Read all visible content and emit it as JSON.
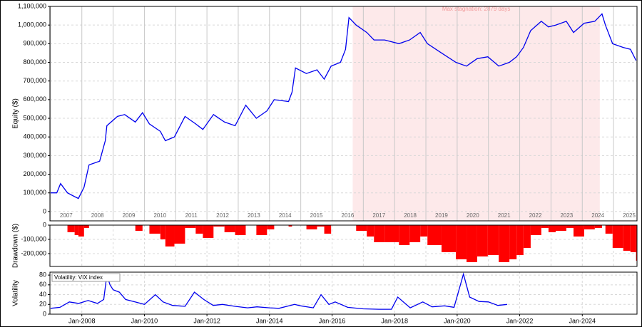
{
  "chart_data": [
    {
      "type": "line",
      "ylabel": "Equity ($)",
      "grid": true,
      "xlim": [
        2006.98,
        2025.75
      ],
      "ylim": [
        -50000,
        1100000
      ],
      "xticks": [
        2007,
        2008,
        2009,
        2010,
        2011,
        2012,
        2013,
        2014,
        2015,
        2016,
        2017,
        2018,
        2019,
        2020,
        2021,
        2022,
        2023,
        2024,
        2025
      ],
      "yticks": [
        {
          "value": 0,
          "label": "0"
        },
        {
          "value": 100000,
          "label": "100,000"
        },
        {
          "value": 200000,
          "label": "200,000"
        },
        {
          "value": 300000,
          "label": "300,000"
        },
        {
          "value": 400000,
          "label": "400,000"
        },
        {
          "value": 500000,
          "label": "500,000"
        },
        {
          "value": 600000,
          "label": "600,000"
        },
        {
          "value": 700000,
          "label": "700,000"
        },
        {
          "value": 800000,
          "label": "800,000"
        },
        {
          "value": 900000,
          "label": "900,000"
        },
        {
          "value": 1000000,
          "label": "1,000,000"
        },
        {
          "value": 1100000,
          "label": "1,100,000"
        }
      ],
      "shaded_regions": [
        {
          "label": "Max stagnation: 2879 days",
          "x": [
            2016.66,
            2024.56
          ],
          "color": "#fde9ea"
        }
      ],
      "x": [
        2007.0,
        2007.2,
        2007.32,
        2007.54,
        2007.77,
        2007.89,
        2008.07,
        2008.23,
        2008.57,
        2008.75,
        2008.8,
        2009.14,
        2009.37,
        2009.71,
        2009.94,
        2010.16,
        2010.51,
        2010.67,
        2010.96,
        2011.3,
        2011.64,
        2011.87,
        2012.21,
        2012.56,
        2012.9,
        2013.24,
        2013.58,
        2013.92,
        2014.15,
        2014.61,
        2014.72,
        2014.83,
        2015.18,
        2015.52,
        2015.75,
        2015.97,
        2016.27,
        2016.43,
        2016.54,
        2016.77,
        2017.11,
        2017.34,
        2017.68,
        2018.14,
        2018.48,
        2018.82,
        2019.05,
        2019.5,
        2019.96,
        2020.3,
        2020.64,
        2020.98,
        2021.33,
        2021.67,
        2021.9,
        2022.12,
        2022.35,
        2022.69,
        2022.92,
        2023.15,
        2023.49,
        2023.72,
        2024.06,
        2024.4,
        2024.63,
        2024.74,
        2024.97,
        2025.31,
        2025.54,
        2025.72
      ],
      "series": [
        {
          "color": "#0000ee",
          "values": [
            100000,
            100000,
            150000,
            100000,
            80000,
            70000,
            130000,
            250000,
            270000,
            380000,
            460000,
            510000,
            520000,
            480000,
            530000,
            470000,
            430000,
            380000,
            400000,
            510000,
            470000,
            440000,
            520000,
            480000,
            460000,
            570000,
            500000,
            540000,
            600000,
            590000,
            640000,
            770000,
            740000,
            760000,
            710000,
            780000,
            800000,
            870000,
            1040000,
            1000000,
            960000,
            920000,
            920000,
            900000,
            920000,
            960000,
            900000,
            850000,
            800000,
            780000,
            820000,
            830000,
            780000,
            800000,
            830000,
            880000,
            970000,
            1020000,
            990000,
            1000000,
            1020000,
            960000,
            1010000,
            1020000,
            1060000,
            1000000,
            900000,
            880000,
            870000,
            810000
          ]
        }
      ]
    },
    {
      "type": "bar",
      "ylabel": "Drawdown ($)",
      "grid": true,
      "xlim": [
        2006.98,
        2025.75
      ],
      "ylim": [
        -290000,
        0
      ],
      "xticks": [
        2008,
        2009,
        2010,
        2011,
        2012,
        2013,
        2014,
        2015,
        2016,
        2017,
        2018,
        2019,
        2020,
        2021,
        2022,
        2023,
        2024,
        2025
      ],
      "yticks": [
        {
          "value": 0,
          "label": "0"
        },
        {
          "value": -100000,
          "label": "-100,000"
        },
        {
          "value": -200000,
          "label": "-200,000"
        }
      ],
      "x": [
        2007.0,
        2007.2,
        2007.32,
        2007.54,
        2007.77,
        2007.89,
        2008.07,
        2008.23,
        2008.57,
        2008.75,
        2008.8,
        2009.14,
        2009.37,
        2009.71,
        2009.94,
        2010.16,
        2010.51,
        2010.67,
        2010.96,
        2011.3,
        2011.64,
        2011.87,
        2012.21,
        2012.56,
        2012.9,
        2013.24,
        2013.58,
        2013.92,
        2014.15,
        2014.61,
        2014.72,
        2014.83,
        2015.18,
        2015.52,
        2015.75,
        2015.97,
        2016.27,
        2016.43,
        2016.54,
        2016.77,
        2017.11,
        2017.34,
        2017.68,
        2018.14,
        2018.48,
        2018.82,
        2019.05,
        2019.5,
        2019.96,
        2020.3,
        2020.64,
        2020.98,
        2021.33,
        2021.67,
        2021.9,
        2022.12,
        2022.35,
        2022.69,
        2022.92,
        2023.15,
        2023.49,
        2023.72,
        2024.06,
        2024.4,
        2024.63,
        2024.74,
        2024.97,
        2025.31,
        2025.54,
        2025.72
      ],
      "series": [
        {
          "color": "#ff0000",
          "values": [
            0,
            0,
            0,
            -50000,
            -70000,
            -80000,
            -20000,
            0,
            0,
            0,
            0,
            0,
            0,
            -40000,
            0,
            -60000,
            -100000,
            -150000,
            -130000,
            -20000,
            -60000,
            -90000,
            -10000,
            -50000,
            -70000,
            0,
            -70000,
            -30000,
            0,
            -10000,
            0,
            0,
            -30000,
            -10000,
            -60000,
            0,
            0,
            0,
            0,
            -40000,
            -80000,
            -120000,
            -120000,
            -140000,
            -120000,
            -80000,
            -140000,
            -190000,
            -240000,
            -260000,
            -220000,
            -210000,
            -260000,
            -240000,
            -210000,
            -160000,
            -70000,
            -20000,
            -50000,
            -40000,
            -20000,
            -80000,
            -30000,
            -20000,
            0,
            -60000,
            -160000,
            -180000,
            -190000,
            -250000
          ]
        }
      ]
    },
    {
      "type": "line",
      "ylabel": "Volatility",
      "grid": true,
      "legend": "upper left",
      "xlim": [
        2006.98,
        2025.75
      ],
      "ylim": [
        0,
        86
      ],
      "xticks": [
        {
          "value": 2008,
          "label": "Jan-2008"
        },
        {
          "value": 2010,
          "label": "Jan-2010"
        },
        {
          "value": 2012,
          "label": "Jan-2012"
        },
        {
          "value": 2014,
          "label": "Jan-2014"
        },
        {
          "value": 2016,
          "label": "Jan-2016"
        },
        {
          "value": 2018,
          "label": "Jan-2018"
        },
        {
          "value": 2020,
          "label": "Jan-2020"
        },
        {
          "value": 2022,
          "label": "Jan-2022"
        },
        {
          "value": 2024,
          "label": "Jan-2024"
        }
      ],
      "yticks": [
        0,
        20,
        40,
        60,
        80
      ],
      "x": [
        2007.0,
        2007.3,
        2007.6,
        2007.9,
        2008.2,
        2008.5,
        2008.7,
        2008.8,
        2008.9,
        2009.0,
        2009.2,
        2009.4,
        2009.7,
        2010.0,
        2010.35,
        2010.6,
        2010.9,
        2011.3,
        2011.6,
        2011.9,
        2012.2,
        2012.5,
        2012.9,
        2013.3,
        2013.6,
        2014.0,
        2014.3,
        2014.8,
        2015.0,
        2015.4,
        2015.65,
        2015.9,
        2016.1,
        2016.5,
        2017.0,
        2017.5,
        2017.9,
        2018.1,
        2018.5,
        2018.9,
        2019.2,
        2019.6,
        2019.9,
        2020.2,
        2020.4,
        2020.7,
        2021.0,
        2021.3,
        2021.6
      ],
      "series": [
        {
          "name": "Volatility: VIX index",
          "color": "#0000ee",
          "values": [
            12,
            14,
            25,
            22,
            28,
            22,
            30,
            80,
            60,
            50,
            45,
            30,
            25,
            20,
            40,
            25,
            18,
            16,
            45,
            30,
            18,
            20,
            16,
            13,
            15,
            13,
            12,
            20,
            17,
            13,
            40,
            20,
            25,
            14,
            11,
            10,
            10,
            35,
            13,
            25,
            15,
            17,
            14,
            82,
            35,
            26,
            25,
            18,
            20
          ]
        }
      ]
    }
  ]
}
